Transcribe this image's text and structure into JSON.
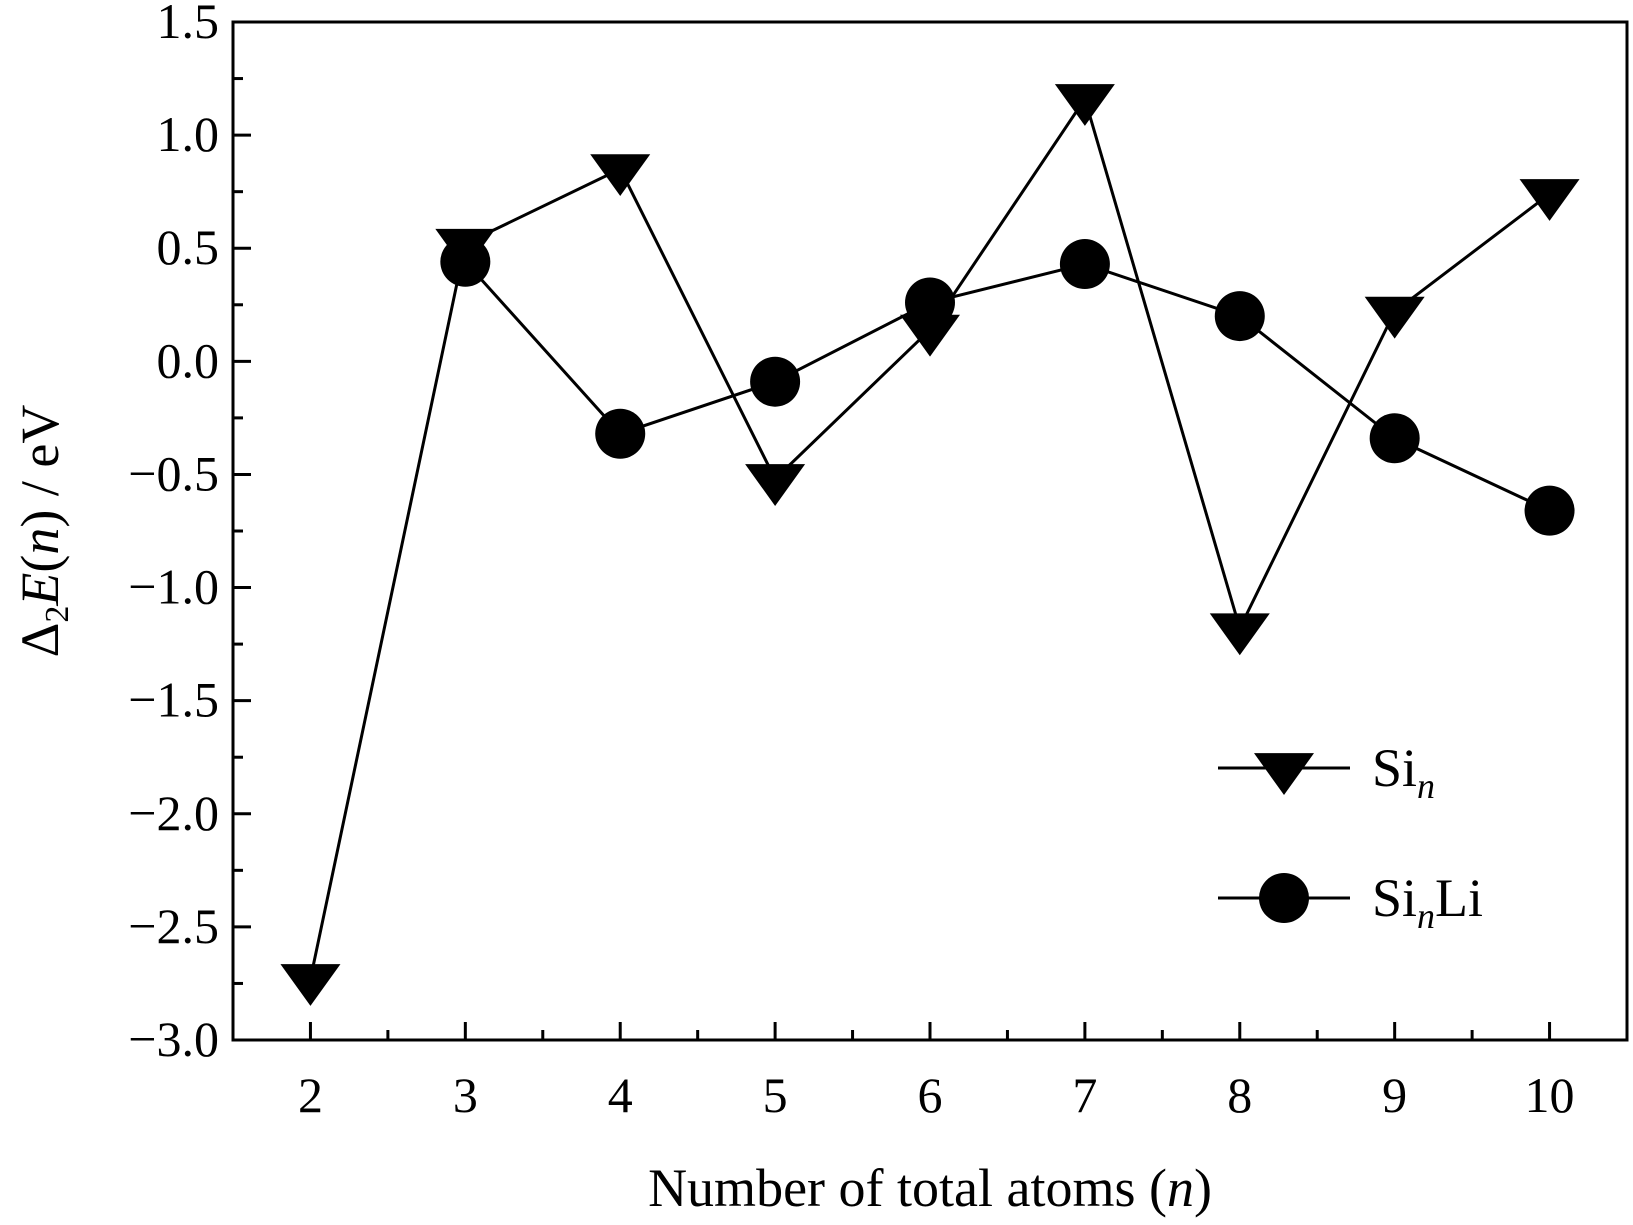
{
  "chart_data": {
    "type": "line",
    "title": "",
    "xlabel": {
      "text": "Number of total atoms (",
      "var": "n",
      "suffix": ")"
    },
    "ylabel": {
      "prefix": "Δ",
      "sub": "2",
      "var1": "E",
      "mid1": "(",
      "var2": "n",
      "mid2": ") / eV"
    },
    "x": [
      2,
      3,
      4,
      5,
      6,
      7,
      8,
      9,
      10
    ],
    "xlim": [
      1.5,
      10.5
    ],
    "ylim": [
      -3.0,
      1.5
    ],
    "xticks": [
      "2",
      "3",
      "4",
      "5",
      "6",
      "7",
      "8",
      "9",
      "10"
    ],
    "yticks": [
      "1.5",
      "1.0",
      "0.5",
      "0.0",
      "−0.5",
      "−1.0",
      "−1.5",
      "−2.0",
      "−2.5",
      "−3.0"
    ],
    "ytick_values": [
      1.5,
      1.0,
      0.5,
      0.0,
      -0.5,
      -1.0,
      -1.5,
      -2.0,
      -2.5,
      -3.0
    ],
    "grid": false,
    "legend_position": "bottom-right",
    "series": [
      {
        "name": {
          "base": "Si",
          "sub": "n",
          "tail": ""
        },
        "marker": "triangle-down",
        "color": "#000000",
        "x": [
          2,
          3,
          4,
          5,
          6,
          7,
          8,
          9,
          10
        ],
        "values": [
          -2.73,
          0.52,
          0.85,
          -0.52,
          0.14,
          1.16,
          -1.18,
          0.22,
          0.74
        ]
      },
      {
        "name": {
          "base": "Si",
          "sub": "n",
          "tail": "Li"
        },
        "marker": "circle",
        "color": "#000000",
        "x": [
          3,
          4,
          5,
          6,
          7,
          8,
          9,
          10
        ],
        "values": [
          0.44,
          -0.32,
          -0.09,
          0.26,
          0.43,
          0.2,
          -0.34,
          -0.66
        ]
      }
    ]
  }
}
